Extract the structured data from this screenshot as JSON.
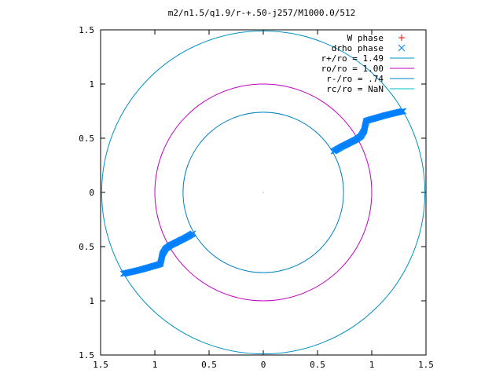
{
  "chart_data": {
    "type": "scatter",
    "title": "m2/n1.5/q1.9/r-+.50-j257/M1000.0/512",
    "xlabel": "",
    "ylabel": "",
    "xlim": [
      -1.5,
      1.5
    ],
    "ylim": [
      -1.5,
      1.5
    ],
    "grid": false,
    "legend_position": "top-right",
    "x_ticks": [
      {
        "value": -1.5,
        "label": "1.5"
      },
      {
        "value": -1,
        "label": "1"
      },
      {
        "value": -0.5,
        "label": "0.5"
      },
      {
        "value": 0,
        "label": "0"
      },
      {
        "value": 0.5,
        "label": "0.5"
      },
      {
        "value": 1,
        "label": "1"
      },
      {
        "value": 1.5,
        "label": "1.5"
      }
    ],
    "y_ticks": [
      {
        "value": 1.5,
        "label": "1.5"
      },
      {
        "value": 1,
        "label": "1"
      },
      {
        "value": 0.5,
        "label": "0.5"
      },
      {
        "value": 0,
        "label": "0"
      },
      {
        "value": -0.5,
        "label": "0.5"
      },
      {
        "value": -1,
        "label": "1"
      },
      {
        "value": -1.5,
        "label": "1.5"
      }
    ],
    "series": [
      {
        "name": "W phase",
        "kind": "points",
        "marker": "+",
        "color": "#ff0000",
        "points": []
      },
      {
        "name": "drho phase",
        "kind": "points",
        "marker": "x",
        "color": "#0080ff",
        "points": [
          [
            0.65,
            0.38
          ],
          [
            0.72,
            0.42
          ],
          [
            0.8,
            0.46
          ],
          [
            0.86,
            0.49
          ],
          [
            0.9,
            0.52
          ],
          [
            0.93,
            0.57
          ],
          [
            0.94,
            0.62
          ],
          [
            0.95,
            0.66
          ],
          [
            0.98,
            0.67
          ],
          [
            1.05,
            0.69
          ],
          [
            1.12,
            0.71
          ],
          [
            1.2,
            0.73
          ],
          [
            1.29,
            0.75
          ],
          [
            -0.65,
            -0.38
          ],
          [
            -0.72,
            -0.42
          ],
          [
            -0.8,
            -0.46
          ],
          [
            -0.86,
            -0.49
          ],
          [
            -0.9,
            -0.52
          ],
          [
            -0.93,
            -0.57
          ],
          [
            -0.94,
            -0.62
          ],
          [
            -0.95,
            -0.66
          ],
          [
            -0.98,
            -0.67
          ],
          [
            -1.05,
            -0.69
          ],
          [
            -1.12,
            -0.71
          ],
          [
            -1.2,
            -0.73
          ],
          [
            -1.29,
            -0.75
          ]
        ]
      },
      {
        "name": "r+/ro = 1.49",
        "kind": "circle",
        "radius": 1.49,
        "color": "#0090c0"
      },
      {
        "name": "ro/ro = 1.00",
        "kind": "circle",
        "radius": 1.0,
        "color": "#c000c0"
      },
      {
        "name": "r-/ro = .74",
        "kind": "circle",
        "radius": 0.74,
        "color": "#0080c0"
      },
      {
        "name": "rc/ro = NaN",
        "kind": "circle",
        "radius": null,
        "color": "#00c0c0"
      }
    ]
  }
}
